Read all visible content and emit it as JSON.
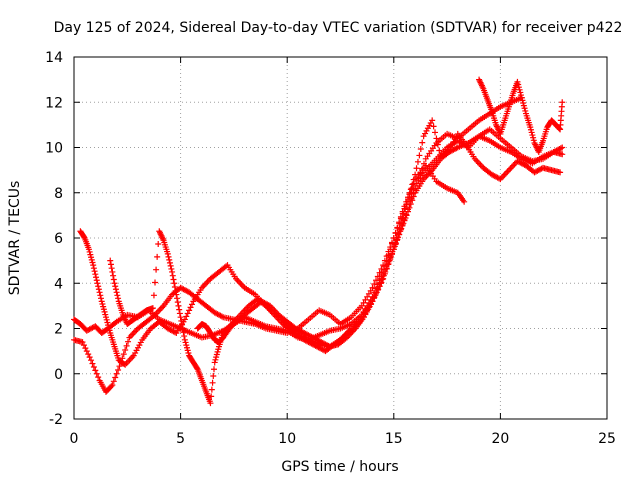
{
  "chart_data": {
    "type": "scatter",
    "title": "Day 125 of 2024, Sidereal Day-to-day VTEC variation (SDTVAR) for receiver p422",
    "xlabel": "GPS time / hours",
    "ylabel": "SDTVAR / TECUs",
    "xlim": [
      0,
      25
    ],
    "ylim": [
      -2,
      14
    ],
    "xticks": [
      "0",
      "5",
      "10",
      "15",
      "20",
      "25"
    ],
    "yticks": [
      "-2",
      "0",
      "2",
      "4",
      "6",
      "8",
      "10",
      "12",
      "14"
    ],
    "grid": true,
    "marker": "+",
    "color": "#ff0000",
    "series": [
      {
        "x": [
          0.0,
          0.3,
          0.6,
          1.0,
          1.3,
          1.6,
          2.0,
          2.5,
          3.0,
          3.5,
          4.0,
          4.5,
          5.0,
          5.5,
          6.0,
          6.5,
          7.0,
          7.5,
          8.0,
          8.5,
          9.0,
          9.5,
          10.0,
          10.5,
          11.0,
          11.5,
          12.0,
          12.5,
          13.0,
          13.5,
          14.0,
          14.5,
          15.0,
          15.3,
          15.6,
          16.0,
          16.4,
          16.8,
          17.2,
          17.6,
          18.0,
          18.5,
          19.0,
          19.5,
          20.0,
          20.5,
          21.0,
          21.5,
          22.0,
          22.5,
          22.9
        ],
        "y": [
          2.4,
          2.2,
          1.9,
          2.1,
          1.8,
          2.0,
          2.3,
          2.6,
          2.5,
          2.8,
          2.4,
          2.2,
          2.0,
          1.8,
          1.6,
          1.7,
          1.9,
          2.2,
          2.5,
          2.3,
          2.1,
          2.0,
          1.9,
          1.6,
          1.5,
          1.7,
          1.9,
          2.0,
          2.2,
          2.6,
          3.2,
          4.2,
          5.5,
          6.3,
          7.0,
          8.0,
          8.6,
          9.0,
          9.5,
          9.8,
          10.0,
          10.2,
          10.5,
          10.3,
          10.0,
          9.8,
          9.5,
          9.3,
          9.6,
          9.8,
          10.0
        ]
      },
      {
        "x": [
          0.0,
          0.4,
          0.8,
          1.2,
          1.5,
          1.8,
          2.2,
          2.6,
          3.0,
          3.4,
          3.8,
          4.2,
          4.6,
          5.0,
          5.4,
          5.8,
          6.2,
          6.6,
          7.0,
          7.5,
          8.0,
          8.5,
          9.0,
          9.5,
          10.0,
          10.5,
          11.0,
          11.5,
          12.0,
          12.5,
          13.0,
          13.5,
          14.0,
          14.5,
          15.0,
          15.5,
          16.0,
          16.5,
          17.0,
          17.5,
          18.0,
          18.5,
          19.0,
          19.5,
          20.0,
          20.5,
          21.0,
          21.5,
          22.0,
          22.5,
          22.9
        ],
        "y": [
          1.5,
          1.4,
          0.6,
          -0.3,
          -0.8,
          -0.5,
          0.5,
          1.6,
          2.0,
          2.3,
          2.6,
          3.0,
          3.5,
          3.8,
          3.6,
          3.3,
          3.0,
          2.7,
          2.5,
          2.4,
          2.3,
          2.2,
          2.0,
          1.9,
          1.8,
          2.0,
          2.4,
          2.8,
          2.6,
          2.2,
          2.5,
          3.0,
          3.8,
          4.8,
          6.0,
          7.3,
          8.3,
          9.0,
          9.5,
          10.0,
          10.3,
          10.0,
          10.5,
          10.8,
          10.4,
          10.0,
          9.6,
          9.4,
          9.5,
          9.8,
          9.7
        ]
      },
      {
        "x": [
          0.3,
          0.5,
          0.7,
          0.9,
          1.1,
          1.3,
          1.5,
          1.7,
          1.9,
          2.1,
          2.4,
          2.8,
          3.2,
          3.6,
          4.0,
          4.4,
          4.8,
          5.2,
          5.6,
          6.0,
          6.4,
          6.8,
          7.2,
          7.6,
          8.0,
          8.5,
          9.0,
          9.5,
          10.0,
          10.5,
          11.0,
          11.5,
          12.0,
          12.5,
          13.0,
          13.5,
          14.0,
          14.5,
          15.0,
          15.5,
          16.0,
          16.5,
          17.0,
          17.5,
          18.0,
          18.5,
          19.0,
          19.5,
          20.0,
          20.5,
          21.0
        ],
        "y": [
          6.3,
          6.0,
          5.5,
          4.8,
          4.0,
          3.2,
          2.5,
          1.8,
          1.2,
          0.6,
          0.4,
          0.8,
          1.5,
          2.0,
          2.3,
          2.0,
          1.8,
          2.4,
          3.2,
          3.8,
          4.2,
          4.5,
          4.8,
          4.2,
          3.8,
          3.5,
          3.0,
          2.6,
          2.2,
          1.8,
          1.5,
          1.3,
          1.2,
          1.5,
          1.9,
          2.4,
          3.2,
          4.4,
          5.5,
          6.8,
          8.2,
          9.5,
          10.2,
          10.6,
          10.4,
          10.8,
          11.2,
          11.5,
          11.8,
          12.0,
          12.2
        ]
      },
      {
        "x": [
          1.7,
          1.9,
          2.1,
          2.3,
          2.5,
          2.8,
          3.1,
          3.4,
          3.7,
          4.0,
          4.2,
          4.4,
          4.6,
          4.8,
          5.0,
          5.2,
          5.4,
          5.6,
          5.8,
          6.0,
          6.2,
          6.4,
          6.6,
          6.8,
          7.0,
          7.4,
          7.8,
          8.2,
          8.6,
          9.0,
          9.4,
          9.8,
          10.2,
          10.6,
          11.0,
          11.4,
          11.8,
          12.2,
          12.6,
          13.0,
          13.5,
          14.0,
          14.5,
          15.0,
          15.5,
          16.0,
          16.5,
          17.0,
          17.5,
          18.0,
          18.3
        ],
        "y": [
          5.0,
          4.0,
          3.2,
          2.6,
          2.2,
          2.4,
          2.6,
          2.8,
          2.9,
          6.3,
          5.9,
          5.3,
          4.5,
          3.5,
          2.5,
          1.5,
          0.8,
          0.5,
          0.2,
          -0.3,
          -0.8,
          -1.3,
          0.5,
          1.2,
          1.8,
          2.2,
          2.6,
          3.0,
          3.3,
          3.0,
          2.6,
          2.2,
          1.9,
          1.6,
          1.4,
          1.2,
          1.0,
          1.3,
          1.6,
          2.0,
          2.6,
          3.4,
          4.5,
          6.0,
          7.4,
          8.6,
          9.2,
          8.5,
          8.2,
          8.0,
          7.6
        ]
      },
      {
        "x": [
          5.8,
          6.0,
          6.2,
          6.4,
          6.6,
          6.8,
          7.0,
          7.3,
          7.6,
          8.0,
          8.4,
          8.8,
          9.2,
          9.6,
          10.0,
          10.4,
          10.8,
          11.2,
          11.6,
          12.0,
          12.4,
          12.8,
          13.2,
          13.6,
          14.0,
          14.4,
          14.8,
          15.2,
          15.6,
          16.0,
          16.4,
          16.8,
          17.2,
          17.6,
          18.0,
          18.4,
          18.8,
          19.2,
          19.6,
          20.0,
          20.4,
          20.8,
          21.2,
          21.6,
          22.0,
          22.4,
          22.8
        ],
        "y": [
          2.0,
          2.2,
          2.1,
          1.8,
          1.5,
          1.4,
          1.6,
          2.0,
          2.3,
          2.6,
          2.9,
          3.2,
          3.0,
          2.6,
          2.3,
          2.0,
          1.8,
          1.6,
          1.4,
          1.2,
          1.3,
          1.6,
          2.0,
          2.5,
          3.2,
          4.0,
          5.0,
          6.2,
          7.5,
          8.8,
          10.5,
          11.2,
          9.6,
          9.9,
          10.6,
          10.1,
          9.5,
          9.1,
          8.8,
          8.6,
          9.0,
          9.4,
          9.2,
          8.9,
          9.1,
          9.0,
          8.9
        ]
      },
      {
        "x": [
          19.0,
          19.2,
          19.4,
          19.6,
          19.8,
          20.0,
          20.2,
          20.4,
          20.6,
          20.8,
          21.0,
          21.2,
          21.4,
          21.6,
          21.8,
          22.0,
          22.2,
          22.4,
          22.6,
          22.8,
          22.9
        ],
        "y": [
          13.0,
          12.6,
          12.1,
          11.6,
          11.0,
          10.6,
          11.2,
          11.8,
          12.4,
          12.9,
          12.2,
          11.5,
          10.9,
          10.2,
          9.8,
          10.3,
          10.9,
          11.2,
          11.0,
          10.8,
          12.0
        ]
      }
    ]
  }
}
